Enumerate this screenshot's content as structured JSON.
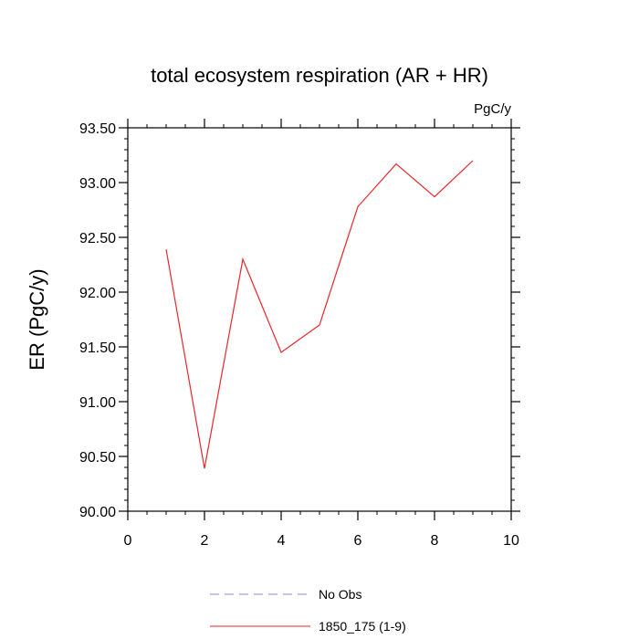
{
  "chart_data": {
    "type": "line",
    "title": "total ecosystem respiration (AR + HR)",
    "units_label": "PgC/y",
    "ylabel": "ER  (PgC/y)",
    "xlabel": "",
    "xlim": [
      0,
      10
    ],
    "ylim": [
      90.0,
      93.5
    ],
    "x_major_ticks": [
      0,
      2,
      4,
      6,
      8,
      10
    ],
    "x_tick_labels": [
      "0",
      "2",
      "4",
      "6",
      "8",
      "10"
    ],
    "y_major_ticks": [
      90.0,
      90.5,
      91.0,
      91.5,
      92.0,
      92.5,
      93.0,
      93.5
    ],
    "y_tick_labels": [
      "90.00",
      "90.50",
      "91.00",
      "91.50",
      "92.00",
      "92.50",
      "93.00",
      "93.50"
    ],
    "grid": false,
    "legend_position": "bottom",
    "series": [
      {
        "name": "1850_175 (1-9)",
        "color": "#e8262a",
        "style": "solid",
        "x": [
          1,
          2,
          3,
          4,
          5,
          6,
          7,
          8,
          9
        ],
        "y": [
          92.39,
          90.39,
          92.3,
          91.45,
          91.7,
          92.78,
          93.17,
          92.87,
          93.2
        ]
      }
    ],
    "legend": [
      {
        "label": "No Obs",
        "color": "#8a8ae0",
        "style": "dashed"
      },
      {
        "label": "1850_175 (1-9)",
        "color": "#e8262a",
        "style": "solid"
      }
    ]
  }
}
